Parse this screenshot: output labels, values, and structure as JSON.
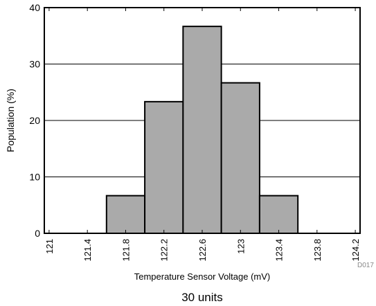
{
  "chart_data": {
    "type": "bar",
    "title": "",
    "xlabel": "Temperature Sensor Voltage (mV)",
    "ylabel": "Population (%)",
    "caption": "30 units",
    "figure_id": "D017",
    "x_ticks": [
      "121",
      "121.4",
      "121.8",
      "122.2",
      "122.6",
      "123",
      "123.4",
      "123.8",
      "124.2"
    ],
    "y_ticks": [
      0,
      10,
      20,
      30,
      40
    ],
    "ylim": [
      0,
      40
    ],
    "xlim": [
      120.95,
      124.25
    ],
    "bin_width": 0.4,
    "bins": [
      {
        "start": 121.6,
        "end": 122.0,
        "value": 6.67
      },
      {
        "start": 122.0,
        "end": 122.4,
        "value": 23.33
      },
      {
        "start": 122.4,
        "end": 122.8,
        "value": 36.67
      },
      {
        "start": 122.8,
        "end": 123.2,
        "value": 26.67
      },
      {
        "start": 123.2,
        "end": 123.6,
        "value": 6.67
      }
    ],
    "grid": "horizontal",
    "bar_color": "#aaaaaa",
    "edge_color": "#000000"
  }
}
